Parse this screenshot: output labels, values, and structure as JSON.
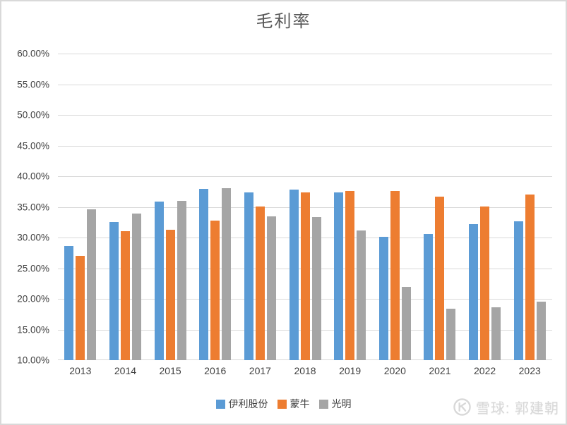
{
  "chart_data": {
    "type": "bar",
    "title": "毛利率",
    "categories": [
      "2013",
      "2014",
      "2015",
      "2016",
      "2017",
      "2018",
      "2019",
      "2020",
      "2021",
      "2022",
      "2023"
    ],
    "series": [
      {
        "name": "伊利股份",
        "color": "#5B9BD5",
        "values": [
          28.6,
          32.5,
          35.9,
          37.9,
          37.3,
          37.8,
          37.3,
          30.1,
          30.6,
          32.2,
          32.6
        ]
      },
      {
        "name": "蒙牛",
        "color": "#ED7D31",
        "values": [
          27.0,
          31.0,
          31.3,
          32.8,
          35.0,
          37.4,
          37.6,
          37.6,
          36.7,
          35.0,
          37.0
        ]
      },
      {
        "name": "光明",
        "color": "#A5A5A5",
        "values": [
          34.6,
          33.9,
          36.0,
          38.1,
          33.4,
          33.3,
          31.1,
          21.9,
          18.4,
          18.6,
          19.5
        ]
      }
    ],
    "y_axis": {
      "min": 10,
      "max": 60,
      "step": 5,
      "tick_labels": [
        "60.00%",
        "55.00%",
        "50.00%",
        "45.00%",
        "40.00%",
        "35.00%",
        "30.00%",
        "25.00%",
        "20.00%",
        "15.00%",
        "10.00%"
      ]
    },
    "xlabel": "",
    "ylabel": "",
    "grid": true,
    "legend_position": "bottom"
  },
  "watermark": {
    "text": "雪球: 郭建朝",
    "icon": "xueqiu-logo"
  },
  "colors": {
    "background": "#FFFFFF",
    "frame_border": "#D9D9D9",
    "gridline": "#D9D9D9",
    "axis_text": "#404040",
    "title_text": "#595959",
    "watermark": "#D8D8D8"
  }
}
